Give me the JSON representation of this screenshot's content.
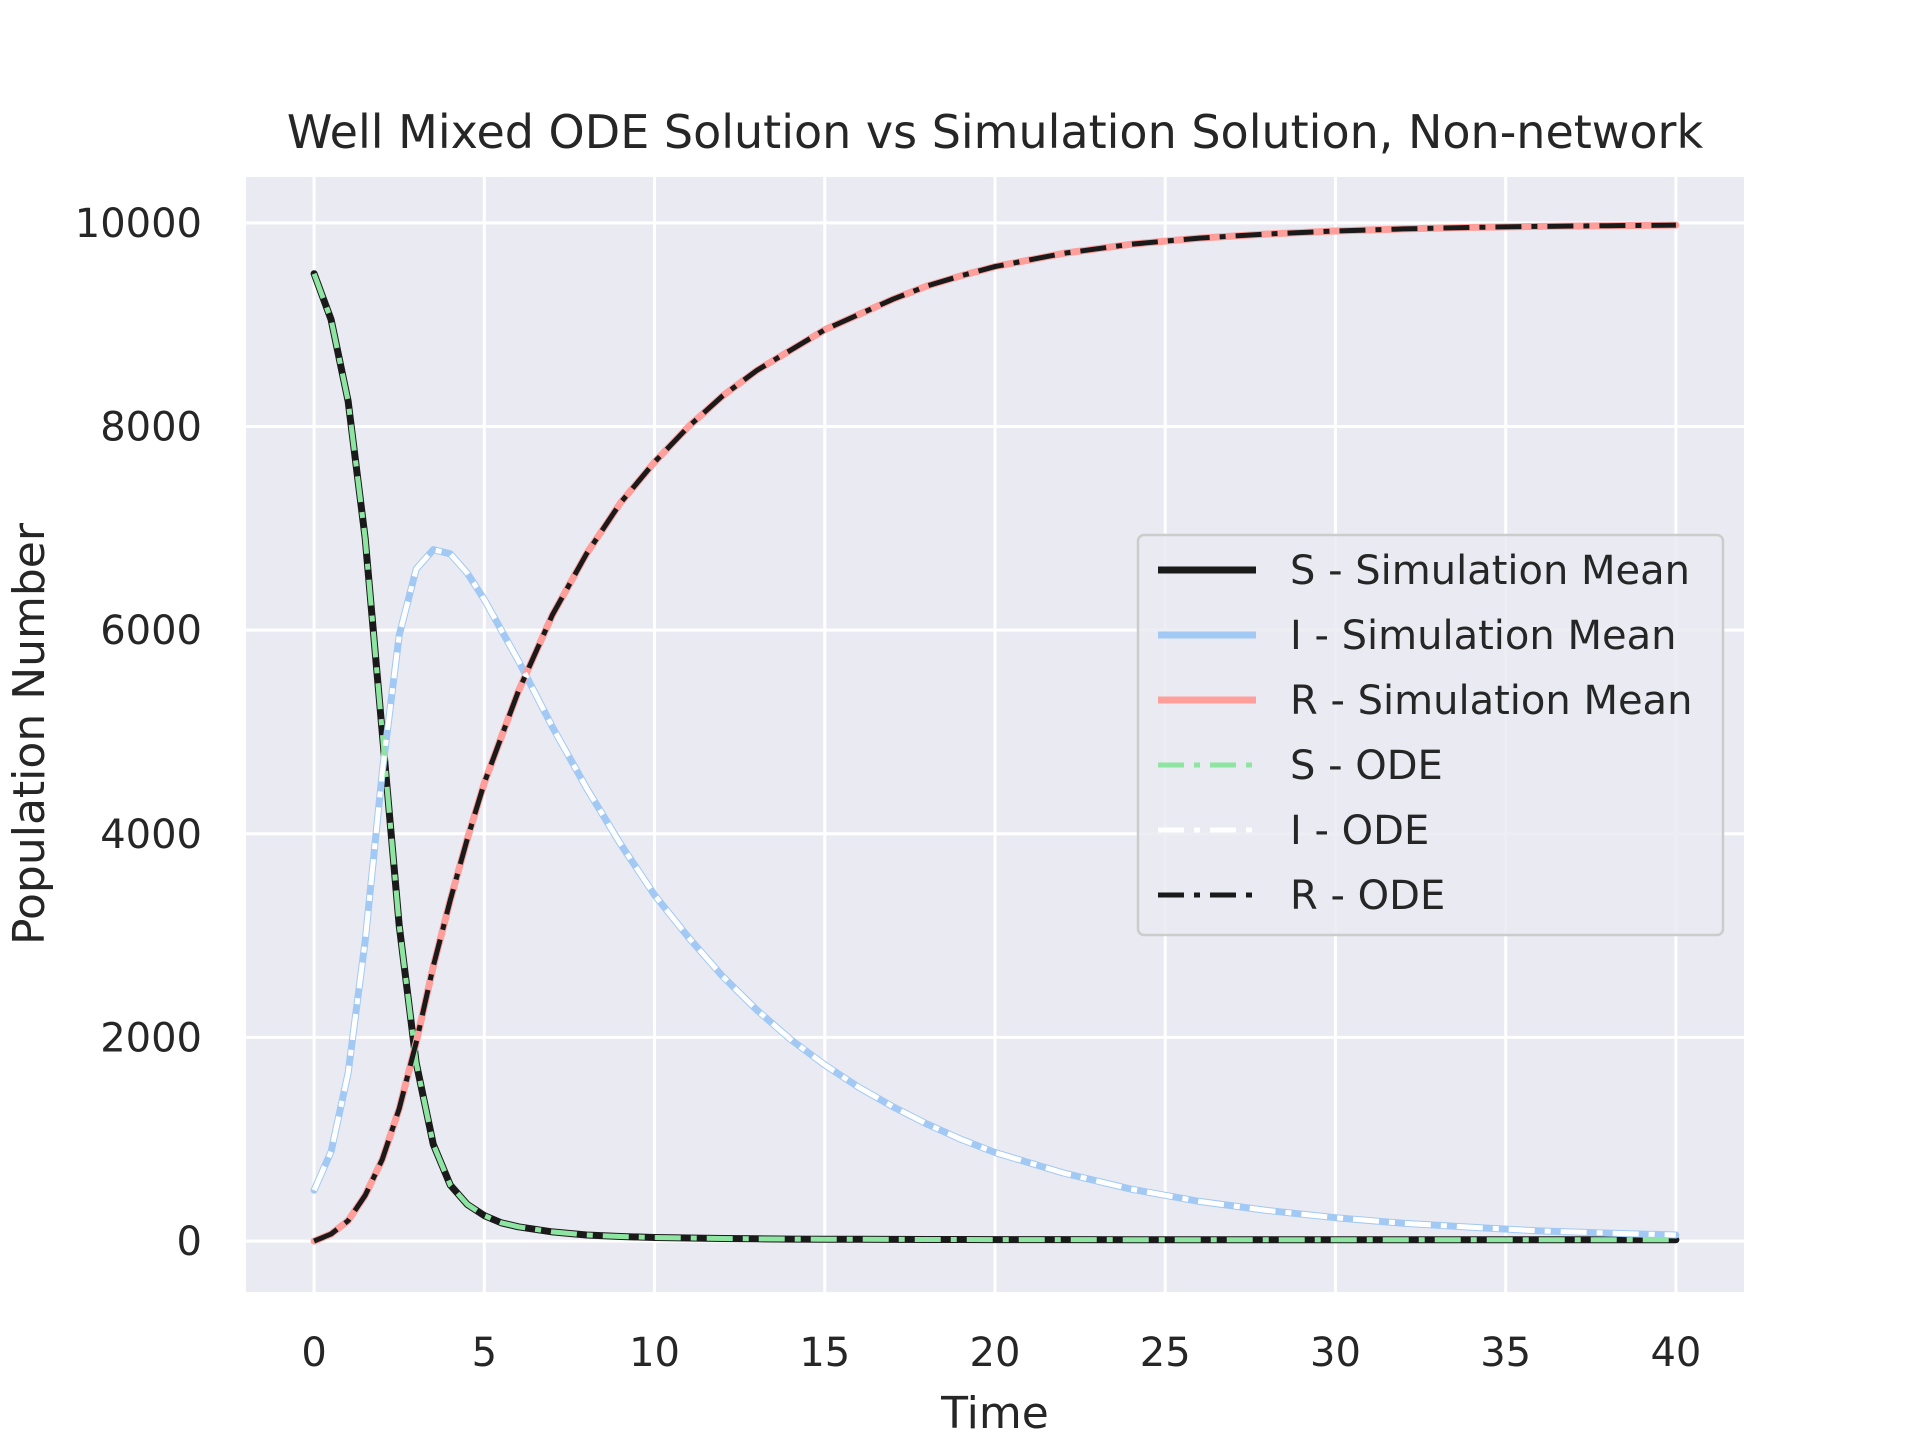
{
  "chart_data": {
    "type": "line",
    "title": "Well Mixed ODE Solution vs Simulation Solution, Non-network",
    "xlabel": "Time",
    "ylabel": "Population Number",
    "xlim": [
      -2,
      42
    ],
    "ylim": [
      -500,
      10450
    ],
    "xticks": [
      0,
      5,
      10,
      15,
      20,
      25,
      30,
      35,
      40
    ],
    "xtick_labels": [
      "0",
      "5",
      "10",
      "15",
      "20",
      "25",
      "30",
      "35",
      "40"
    ],
    "yticks": [
      0,
      2000,
      4000,
      6000,
      8000,
      10000
    ],
    "ytick_labels": [
      "0",
      "2000",
      "4000",
      "6000",
      "8000",
      "10000"
    ],
    "grid": true,
    "legend_position": "center-right",
    "background": "#eaeaf2",
    "x": [
      0,
      0.5,
      1,
      1.5,
      2,
      2.5,
      3,
      3.5,
      4,
      4.5,
      5,
      5.5,
      6,
      7,
      8,
      9,
      10,
      11,
      12,
      13,
      14,
      15,
      16,
      17,
      18,
      19,
      20,
      22,
      24,
      26,
      28,
      30,
      32,
      34,
      36,
      38,
      40
    ],
    "series": [
      {
        "name": "S - Simulation Mean",
        "style": "solid",
        "width": 7,
        "color": "#1a1a1a",
        "values": [
          9500,
          9050,
          8250,
          6900,
          5000,
          3100,
          1750,
          950,
          550,
          360,
          250,
          180,
          140,
          90,
          60,
          45,
          35,
          30,
          25,
          22,
          20,
          19,
          18,
          17,
          16,
          16,
          15,
          15,
          14,
          14,
          14,
          14,
          13,
          13,
          13,
          13,
          13
        ]
      },
      {
        "name": "I - Simulation Mean",
        "style": "solid",
        "width": 7,
        "color": "#a1c9f4",
        "values": [
          500,
          880,
          1650,
          2950,
          4600,
          5950,
          6600,
          6790,
          6750,
          6560,
          6300,
          6000,
          5700,
          5050,
          4450,
          3900,
          3400,
          2980,
          2600,
          2270,
          1980,
          1730,
          1510,
          1320,
          1150,
          1000,
          870,
          670,
          510,
          390,
          300,
          230,
          175,
          135,
          100,
          78,
          60
        ]
      },
      {
        "name": "R - Simulation Mean",
        "style": "solid",
        "width": 7,
        "color": "#ff9f9b",
        "values": [
          0,
          70,
          200,
          450,
          800,
          1300,
          1950,
          2700,
          3350,
          3950,
          4500,
          4950,
          5400,
          6150,
          6750,
          7250,
          7650,
          8000,
          8300,
          8550,
          8750,
          8950,
          9100,
          9250,
          9380,
          9480,
          9570,
          9700,
          9790,
          9850,
          9890,
          9920,
          9940,
          9955,
          9965,
          9972,
          9978
        ]
      },
      {
        "name": "S - ODE",
        "style": "dashdot",
        "width": 5,
        "color": "#8de5a1",
        "values": [
          9500,
          9050,
          8250,
          6900,
          5000,
          3100,
          1750,
          950,
          550,
          360,
          250,
          180,
          140,
          90,
          60,
          45,
          35,
          30,
          25,
          22,
          20,
          19,
          18,
          17,
          16,
          16,
          15,
          15,
          14,
          14,
          14,
          14,
          13,
          13,
          13,
          13,
          13
        ]
      },
      {
        "name": "I - ODE",
        "style": "dashdot",
        "width": 5,
        "color": "#ffffff",
        "values": [
          500,
          880,
          1650,
          2950,
          4600,
          5950,
          6600,
          6790,
          6750,
          6560,
          6300,
          6000,
          5700,
          5050,
          4450,
          3900,
          3400,
          2980,
          2600,
          2270,
          1980,
          1730,
          1510,
          1320,
          1150,
          1000,
          870,
          670,
          510,
          390,
          300,
          230,
          175,
          135,
          100,
          78,
          60
        ]
      },
      {
        "name": "R - ODE",
        "style": "dashdot",
        "width": 5,
        "color": "#1a1a1a",
        "values": [
          0,
          70,
          200,
          450,
          800,
          1300,
          1950,
          2700,
          3350,
          3950,
          4500,
          4950,
          5400,
          6150,
          6750,
          7250,
          7650,
          8000,
          8300,
          8550,
          8750,
          8950,
          9100,
          9250,
          9380,
          9480,
          9570,
          9700,
          9790,
          9850,
          9890,
          9920,
          9940,
          9955,
          9965,
          9972,
          9978
        ]
      }
    ]
  }
}
